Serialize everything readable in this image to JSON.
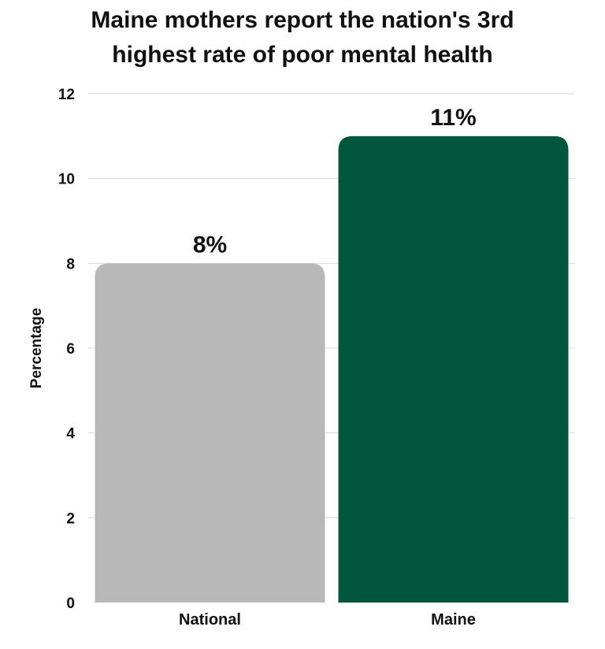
{
  "chart_data": {
    "type": "bar",
    "title_lines": [
      "Maine mothers report the nation's 3rd",
      "highest rate of poor mental health"
    ],
    "xlabel": "",
    "ylabel": "Percentage",
    "categories": [
      "National",
      "Maine"
    ],
    "values": [
      8,
      11
    ],
    "data_labels": [
      "8%",
      "11%"
    ],
    "bar_colors": [
      "#b8b8b8",
      "#00573e"
    ],
    "ylim": [
      0,
      12
    ],
    "yticks": [
      0,
      2,
      4,
      6,
      8,
      10,
      12
    ],
    "grid": true,
    "legend": "none"
  }
}
